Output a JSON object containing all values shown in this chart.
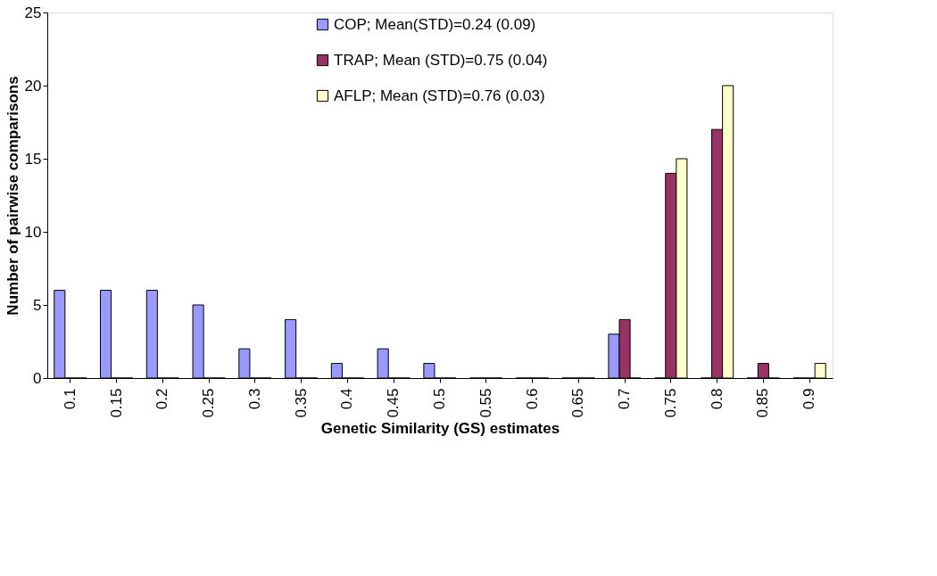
{
  "chart_data": {
    "type": "bar",
    "xlabel": "Genetic Similarity (GS) estimates",
    "ylabel": "Number of pairwise comparisons",
    "categories": [
      "0.1",
      "0.15",
      "0.2",
      "0.25",
      "0.3",
      "0.35",
      "0.4",
      "0.45",
      "0.5",
      "0.55",
      "0.6",
      "0.65",
      "0.7",
      "0.75",
      "0.8",
      "0.85",
      "0.9"
    ],
    "series": [
      {
        "name": "COP; Mean(STD)=0.24 (0.09)",
        "color": "#9999ff",
        "values": [
          6,
          6,
          6,
          5,
          2,
          4,
          1,
          2,
          1,
          0,
          0,
          0,
          3,
          0,
          0,
          0,
          0
        ]
      },
      {
        "name": "TRAP; Mean (STD)=0.75 (0.04)",
        "color": "#993366",
        "values": [
          0,
          0,
          0,
          0,
          0,
          0,
          0,
          0,
          0,
          0,
          0,
          0,
          4,
          14,
          17,
          1,
          0
        ]
      },
      {
        "name": "AFLP; Mean (STD)=0.76 (0.03)",
        "color": "#ffffcc",
        "values": [
          0,
          0,
          0,
          0,
          0,
          0,
          0,
          0,
          0,
          0,
          0,
          0,
          0,
          15,
          20,
          0,
          1
        ]
      }
    ],
    "ylim": [
      0,
      25
    ],
    "yticks": [
      0,
      5,
      10,
      15,
      20,
      25
    ],
    "grid": false,
    "legend": "top"
  }
}
